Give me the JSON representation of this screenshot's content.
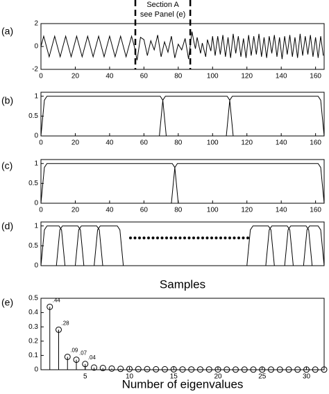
{
  "chart_data": [
    {
      "type": "line",
      "label": "(a)",
      "annotation": [
        "Section A",
        "see Panel (e)"
      ],
      "vlines": [
        55,
        87
      ],
      "xlim": [
        0,
        165
      ],
      "xticks": [
        0,
        20,
        40,
        60,
        80,
        100,
        120,
        140,
        160
      ],
      "ylim": [
        -2,
        2
      ],
      "yticks": [
        -2,
        0,
        2
      ],
      "series": [
        {
          "color": "#000000",
          "x": [
            0,
            1.6,
            3.2,
            4.8,
            6.4,
            8,
            9.6,
            11.2,
            12.8,
            14.4,
            16,
            17.6,
            19.2,
            20.8,
            22.4,
            24,
            25.6,
            27.2,
            28.8,
            30.4,
            32,
            33.6,
            35.2,
            36.8,
            38.4,
            40,
            41.6,
            43.2,
            44.8,
            46.4,
            48,
            49.6,
            51.2,
            52.8,
            54.4,
            56,
            58,
            60,
            62,
            64,
            66,
            68,
            70,
            72,
            74,
            76,
            78,
            80,
            82,
            84,
            86,
            88,
            89,
            90,
            91,
            93,
            94,
            96,
            97,
            99,
            100,
            101.5,
            103,
            104.5,
            106,
            107.5,
            109,
            110.5,
            112,
            113.5,
            115,
            116.5,
            118,
            119.5,
            121,
            122.5,
            124,
            125.5,
            127,
            128.5,
            130,
            131.5,
            133,
            134.5,
            136,
            137.5,
            139,
            140.5,
            142,
            143.5,
            145,
            146.5,
            148,
            149.5,
            151,
            152.5,
            154,
            155.5,
            157,
            158.5,
            160,
            161.5,
            163,
            164.5
          ],
          "values": [
            0,
            0.9,
            0,
            -0.9,
            0,
            0.9,
            0,
            -0.9,
            0,
            0.9,
            0,
            -0.9,
            0,
            0.9,
            0,
            -0.9,
            0,
            0.9,
            0,
            -0.9,
            0,
            0.9,
            0,
            -0.9,
            0,
            0.9,
            0,
            -0.9,
            0,
            0.9,
            0,
            -0.9,
            0,
            0.9,
            0,
            -1.2,
            0.8,
            0.6,
            -0.8,
            0.5,
            -0.3,
            1.0,
            -0.9,
            0.4,
            -0.5,
            0.9,
            -1.0,
            0.2,
            -0.3,
            0.7,
            -1.1,
            1.3,
            0.5,
            -0.2,
            0.8,
            -0.6,
            0.3,
            -0.9,
            0.6,
            -0.4,
            0.9,
            -0.8,
            0.9,
            -0.7,
            1.0,
            -0.9,
            0.8,
            -1.0,
            1.1,
            -0.6,
            0.9,
            -0.9,
            0.7,
            -1.0,
            1.0,
            -0.8,
            0.9,
            -0.7,
            1.1,
            -0.9,
            0.8,
            -1.0,
            0.9,
            -0.6,
            1.0,
            -0.9,
            0.8,
            -1.1,
            0.9,
            -0.7,
            1.0,
            -0.9,
            0.8,
            -1.0,
            1.1,
            -0.8,
            0.9,
            -0.7,
            1.0,
            -0.9,
            0.8,
            -1.0,
            0.9,
            -0.8
          ]
        }
      ]
    },
    {
      "type": "line",
      "label": "(b)",
      "xlim": [
        0,
        165
      ],
      "xticks": [
        0,
        20,
        40,
        60,
        80,
        100,
        120,
        140,
        160
      ],
      "ylim": [
        0,
        1.1
      ],
      "yticks": [
        0,
        0.5,
        1
      ],
      "series": [
        {
          "color": "#000000",
          "x": [
            0,
            1,
            2,
            3.5,
            69.5,
            71,
            72,
            73
          ],
          "values": [
            0,
            0.45,
            0.9,
            1,
            1,
            0.9,
            0.45,
            0
          ]
        },
        {
          "color": "#000000",
          "x": [
            69,
            70,
            71,
            72.5,
            108.5,
            110,
            111,
            112
          ],
          "values": [
            0,
            0.45,
            0.9,
            1,
            1,
            0.9,
            0.45,
            0
          ]
        },
        {
          "color": "#000000",
          "x": [
            108,
            109,
            110,
            111.5,
            161.5,
            163,
            164,
            165
          ],
          "values": [
            0,
            0.45,
            0.9,
            1,
            1,
            0.9,
            0.45,
            0
          ]
        }
      ]
    },
    {
      "type": "line",
      "label": "(c)",
      "xlim": [
        0,
        165
      ],
      "xticks": [
        0,
        20,
        40,
        60,
        80,
        100,
        120,
        140,
        160
      ],
      "ylim": [
        0,
        1.1
      ],
      "yticks": [
        0,
        0.5,
        1
      ],
      "series": [
        {
          "color": "#000000",
          "x": [
            0,
            1,
            2,
            3.5,
            76.5,
            78,
            79,
            80
          ],
          "values": [
            0,
            0.45,
            0.9,
            1,
            1,
            0.9,
            0.45,
            0
          ]
        },
        {
          "color": "#000000",
          "x": [
            76,
            77,
            78,
            79.5,
            161.5,
            163,
            164,
            165
          ],
          "values": [
            0,
            0.45,
            0.9,
            1,
            1,
            0.9,
            0.45,
            0
          ]
        }
      ]
    },
    {
      "type": "line",
      "label": "(d)",
      "xlabel": "Samples",
      "xlim": [
        0,
        165
      ],
      "ylim": [
        0,
        1.1
      ],
      "yticks": [
        0,
        0.5,
        1
      ],
      "series": [
        {
          "color": "#000000",
          "x": [
            0,
            1,
            2,
            3.5,
            10.5,
            12,
            13,
            14
          ],
          "values": [
            0,
            0.45,
            0.9,
            1,
            1,
            0.9,
            0.45,
            0
          ]
        },
        {
          "color": "#000000",
          "x": [
            9,
            10,
            11,
            12.5,
            21.5,
            23,
            24,
            25
          ],
          "values": [
            0,
            0.45,
            0.9,
            1,
            1,
            0.9,
            0.45,
            0
          ]
        },
        {
          "color": "#000000",
          "x": [
            20,
            21,
            22,
            23.5,
            32.5,
            34,
            35,
            36
          ],
          "values": [
            0,
            0.45,
            0.9,
            1,
            1,
            0.9,
            0.45,
            0
          ]
        },
        {
          "color": "#000000",
          "x": [
            31,
            32,
            33,
            34.5,
            44.5,
            46,
            47,
            48
          ],
          "values": [
            0,
            0.45,
            0.9,
            1,
            1,
            0.9,
            0.45,
            0
          ]
        },
        {
          "color": "#000000",
          "x": [
            120,
            121,
            122,
            123.5,
            132.5,
            134,
            135,
            136
          ],
          "values": [
            0,
            0.45,
            0.9,
            1,
            1,
            0.9,
            0.45,
            0
          ]
        },
        {
          "color": "#000000",
          "x": [
            131,
            132,
            133,
            134.5,
            143.5,
            145,
            146,
            147
          ],
          "values": [
            0,
            0.45,
            0.9,
            1,
            1,
            0.9,
            0.45,
            0
          ]
        },
        {
          "color": "#000000",
          "x": [
            142,
            143,
            144,
            145.5,
            154.5,
            156,
            157,
            158
          ],
          "values": [
            0,
            0.45,
            0.9,
            1,
            1,
            0.9,
            0.45,
            0
          ]
        },
        {
          "color": "#000000",
          "x": [
            153,
            154,
            155,
            156.5,
            161.5,
            163,
            164,
            165
          ],
          "values": [
            0,
            0.45,
            0.9,
            1,
            1,
            0.9,
            0.45,
            0
          ]
        }
      ]
    },
    {
      "type": "stem",
      "label": "(e)",
      "xlabel": "Number of eigenvalues",
      "xlim": [
        0,
        32
      ],
      "xticks": [
        5,
        10,
        15,
        20,
        25,
        30
      ],
      "ylim": [
        0,
        0.5
      ],
      "yticks": [
        0,
        0.1,
        0.2,
        0.3,
        0.4,
        0.5
      ],
      "color": "#000000",
      "x": [
        1,
        2,
        3,
        4,
        5,
        6,
        7,
        8,
        9,
        10,
        11,
        12,
        13,
        14,
        15,
        16,
        17,
        18,
        19,
        20,
        21,
        22,
        23,
        24,
        25,
        26,
        27,
        28,
        29,
        30,
        31,
        32
      ],
      "values": [
        0.44,
        0.28,
        0.09,
        0.07,
        0.04,
        0.015,
        0.012,
        0.008,
        0.006,
        0.005,
        0.004,
        0.004,
        0.003,
        0.003,
        0.003,
        0.002,
        0.002,
        0.002,
        0.002,
        0.002,
        0.001,
        0.001,
        0.001,
        0.001,
        0.001,
        0.001,
        0.001,
        0.001,
        0.001,
        0.001,
        0.001,
        0.001
      ],
      "value_labels": [
        ".44",
        ".28",
        ".09",
        ".07",
        ".04",
        null,
        null,
        null,
        null,
        null,
        null,
        null,
        null,
        null,
        null,
        null,
        null,
        null,
        null,
        null,
        null,
        null,
        null,
        null,
        null,
        null,
        null,
        null,
        null,
        null,
        null,
        null
      ]
    }
  ]
}
